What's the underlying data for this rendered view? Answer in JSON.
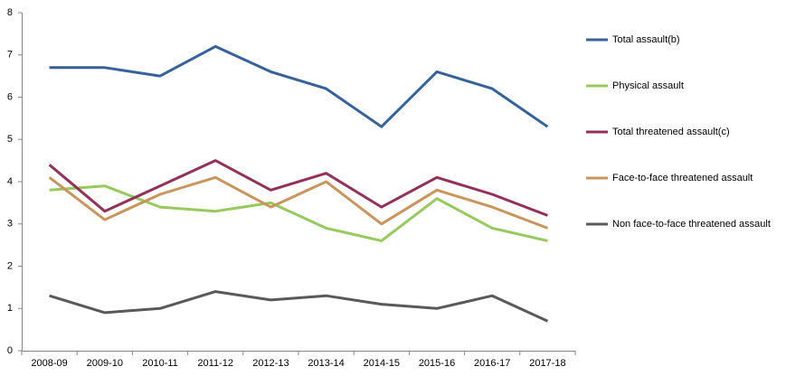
{
  "chart_data": {
    "type": "line",
    "categories": [
      "2008-09",
      "2009-10",
      "2010-11",
      "2011-12",
      "2012-13",
      "2013-14",
      "2014-15",
      "2015-16",
      "2016-17",
      "2017-18"
    ],
    "series": [
      {
        "name": "Total assault(b)",
        "color": "#376299",
        "values": [
          6.7,
          6.7,
          6.5,
          7.2,
          6.6,
          6.2,
          5.3,
          6.6,
          6.2,
          5.3
        ]
      },
      {
        "name": "Physical assault",
        "color": "#98c95f",
        "values": [
          3.8,
          3.9,
          3.4,
          3.3,
          3.5,
          2.9,
          2.6,
          3.6,
          2.9,
          2.6
        ]
      },
      {
        "name": "Total threatened assault(c)",
        "color": "#923159",
        "values": [
          4.4,
          3.3,
          3.9,
          4.5,
          3.8,
          4.2,
          3.4,
          4.1,
          3.7,
          3.2
        ]
      },
      {
        "name": "Face-to-face threatened assault",
        "color": "#c8965d",
        "values": [
          4.1,
          3.1,
          3.7,
          4.1,
          3.4,
          4.0,
          3.0,
          3.8,
          3.4,
          2.9
        ]
      },
      {
        "name": "Non face-to-face threatened assault",
        "color": "#595959",
        "values": [
          1.3,
          0.9,
          1.0,
          1.4,
          1.2,
          1.3,
          1.1,
          1.0,
          1.3,
          0.7
        ]
      }
    ],
    "ylim": [
      0,
      8
    ],
    "yticks": [
      0,
      1,
      2,
      3,
      4,
      5,
      6,
      7,
      8
    ],
    "grid": false,
    "legend": "right"
  }
}
